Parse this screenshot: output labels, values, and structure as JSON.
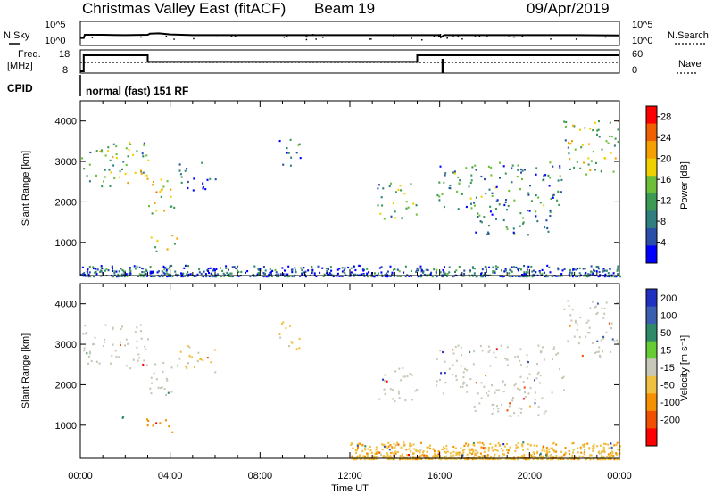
{
  "header": {
    "station": "Christmas Valley East (fitACF)",
    "beam": "Beam 19",
    "date": "09/Apr/2019"
  },
  "top_panel": {
    "left_label": "N.Sky",
    "right_label": "N.Search",
    "left_ticks": [
      "10^5",
      "10^0"
    ],
    "right_ticks": [
      "10^5",
      "10^0"
    ]
  },
  "freq_panel": {
    "left_label_1": "Freq.",
    "left_label_2": "[MHz]",
    "right_label": "Nave",
    "left_ticks": [
      "18",
      "8"
    ],
    "right_ticks": [
      "60",
      "0"
    ],
    "cpid_label": "CPID",
    "mode_text": "normal (fast) 151 RF"
  },
  "chart_data": [
    {
      "type": "line",
      "panel": "noise",
      "x_unit": "hours UT",
      "series": [
        {
          "name": "N.Sky",
          "x": [
            0,
            0.15,
            0.2,
            1,
            2,
            3,
            3.1,
            3.5,
            4,
            5,
            8,
            12,
            15,
            16,
            16.05,
            16.2,
            20,
            22,
            24
          ],
          "log10_values": [
            0.1,
            0.1,
            1.0,
            1.0,
            0.9,
            1.0,
            1.3,
            1.4,
            1.1,
            0.9,
            0.9,
            0.9,
            0.9,
            0.9,
            0.3,
            0.9,
            0.9,
            0.9,
            0.8
          ]
        }
      ],
      "ylim": [
        0,
        5
      ]
    },
    {
      "type": "line",
      "panel": "frequency",
      "x_unit": "hours UT",
      "series": [
        {
          "name": "Freq.",
          "x": [
            0,
            0.15,
            0.15,
            3,
            3,
            15,
            15,
            24
          ],
          "values": [
            8,
            8,
            16.2,
            16.2,
            12.8,
            12.8,
            16.2,
            16.2
          ]
        }
      ],
      "ylim": [
        8,
        18
      ]
    },
    {
      "type": "heatmap",
      "panel": "power",
      "x_unit": "hours UT",
      "xlabel": "Time UT",
      "ylabel": "Slant Range [km]",
      "xlim": [
        0,
        24
      ],
      "ylim": [
        180,
        4500
      ],
      "x_ticks": [
        "00:00",
        "04:00",
        "08:00",
        "12:00",
        "16:00",
        "20:00",
        "00:00"
      ],
      "y_ticks": [
        1000,
        2000,
        3000,
        4000
      ],
      "colorbar": {
        "label": "Power [dB]",
        "ticks": [
          "4",
          "8",
          "12",
          "16",
          "20",
          "24",
          "28"
        ],
        "range": [
          0,
          30
        ]
      },
      "regions": [
        {
          "t": [
            0,
            3
          ],
          "range_km": [
            2400,
            3500
          ],
          "level_db": 14
        },
        {
          "t": [
            2.9,
            4.3
          ],
          "range_km": [
            1700,
            2600
          ],
          "level_db": 17
        },
        {
          "t": [
            2.9,
            4.3
          ],
          "range_km": [
            800,
            1200
          ],
          "level_db": 18
        },
        {
          "t": [
            4.3,
            6
          ],
          "range_km": [
            2300,
            3000
          ],
          "level_db": 6
        },
        {
          "t": [
            8.8,
            9.8
          ],
          "range_km": [
            2900,
            3600
          ],
          "level_db": 8
        },
        {
          "t": [
            13.2,
            15
          ],
          "range_km": [
            1600,
            2500
          ],
          "level_db": 12
        },
        {
          "t": [
            15.8,
            21.5
          ],
          "range_km": [
            1800,
            3000
          ],
          "level_db": 10
        },
        {
          "t": [
            17.5,
            21
          ],
          "range_km": [
            1200,
            1800
          ],
          "level_db": 8
        },
        {
          "t": [
            21.5,
            24
          ],
          "range_km": [
            2700,
            4100
          ],
          "level_db": 14
        },
        {
          "t": [
            0,
            24
          ],
          "range_km": [
            180,
            450
          ],
          "level_db": 6
        }
      ]
    },
    {
      "type": "heatmap",
      "panel": "velocity",
      "x_unit": "hours UT",
      "xlabel": "Time UT",
      "ylabel": "Slant Range [km]",
      "xlim": [
        0,
        24
      ],
      "ylim": [
        180,
        4500
      ],
      "x_ticks": [
        "00:00",
        "04:00",
        "08:00",
        "12:00",
        "16:00",
        "20:00",
        "00:00"
      ],
      "y_ticks": [
        1000,
        2000,
        3000,
        4000
      ],
      "colorbar": {
        "label": "Velocity [m s⁻¹]",
        "ticks": [
          "200",
          "100",
          "50",
          "15",
          "-15",
          "-50",
          "-100",
          "-200"
        ]
      },
      "regions": [
        {
          "t": [
            0,
            3
          ],
          "range_km": [
            2400,
            3500
          ],
          "velocity": 0
        },
        {
          "t": [
            2.9,
            4.3
          ],
          "range_km": [
            1700,
            2600
          ],
          "velocity": 0
        },
        {
          "t": [
            2.9,
            4.3
          ],
          "range_km": [
            800,
            1200
          ],
          "velocity": -60
        },
        {
          "t": [
            1.6,
            2.1
          ],
          "range_km": [
            1150,
            1350
          ],
          "velocity": 30
        },
        {
          "t": [
            4.3,
            6
          ],
          "range_km": [
            2300,
            3000
          ],
          "velocity": -20
        },
        {
          "t": [
            8.8,
            9.8
          ],
          "range_km": [
            2900,
            3600
          ],
          "velocity": -20
        },
        {
          "t": [
            13.2,
            15
          ],
          "range_km": [
            1600,
            2500
          ],
          "velocity": 0
        },
        {
          "t": [
            15.8,
            21.5
          ],
          "range_km": [
            1800,
            3000
          ],
          "velocity": 0
        },
        {
          "t": [
            17.5,
            21
          ],
          "range_km": [
            1200,
            1800
          ],
          "velocity": 0
        },
        {
          "t": [
            21.5,
            24
          ],
          "range_km": [
            2700,
            4100
          ],
          "velocity": 0
        },
        {
          "t": [
            12,
            24
          ],
          "range_km": [
            180,
            600
          ],
          "velocity": -25
        }
      ]
    }
  ]
}
